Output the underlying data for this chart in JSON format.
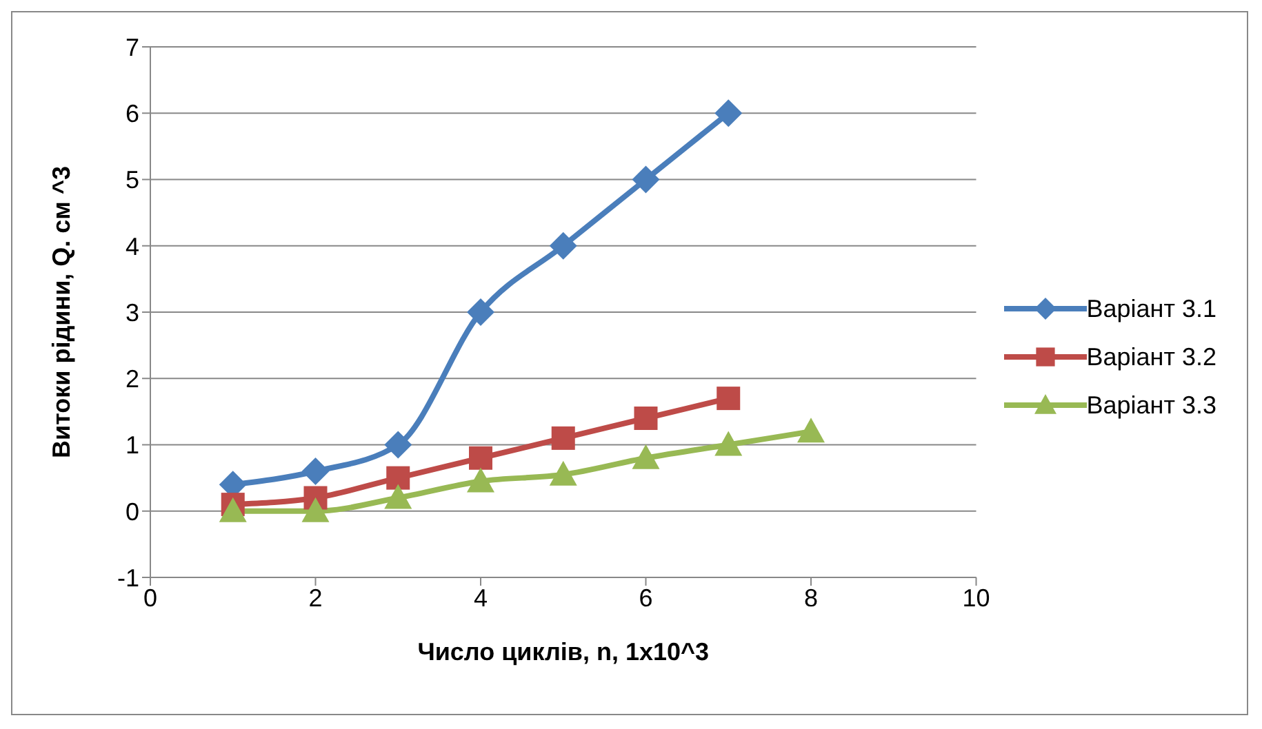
{
  "chart_data": {
    "type": "line",
    "xlabel": "Число циклів, n, 1x10^3",
    "ylabel": "Витоки  рідини, Q. см ^3",
    "xlim": [
      0,
      10
    ],
    "xticks": [
      0,
      2,
      4,
      6,
      8,
      10
    ],
    "ylim": [
      -1,
      7
    ],
    "yticks": [
      -1,
      0,
      1,
      2,
      3,
      4,
      5,
      6,
      7
    ],
    "grid": "y",
    "legend": "right",
    "series": [
      {
        "name": "Варіант 3.1",
        "color": "#4a7ebb",
        "marker": "diamond",
        "x": [
          1,
          2,
          3,
          4,
          5,
          6,
          7
        ],
        "values": [
          0.4,
          0.6,
          1,
          3,
          4,
          5,
          6
        ]
      },
      {
        "name": "Варіант 3.2",
        "color": "#be4b48",
        "marker": "square",
        "x": [
          1,
          2,
          3,
          4,
          5,
          6,
          7
        ],
        "values": [
          0.1,
          0.2,
          0.5,
          0.8,
          1.1,
          1.4,
          1.7
        ]
      },
      {
        "name": "Варіант 3.3",
        "color": "#98b954",
        "marker": "triangle",
        "x": [
          1,
          2,
          3,
          4,
          5,
          6,
          7,
          8
        ],
        "values": [
          0,
          0,
          0.2,
          0.45,
          0.55,
          0.8,
          1,
          1.2
        ]
      }
    ]
  }
}
